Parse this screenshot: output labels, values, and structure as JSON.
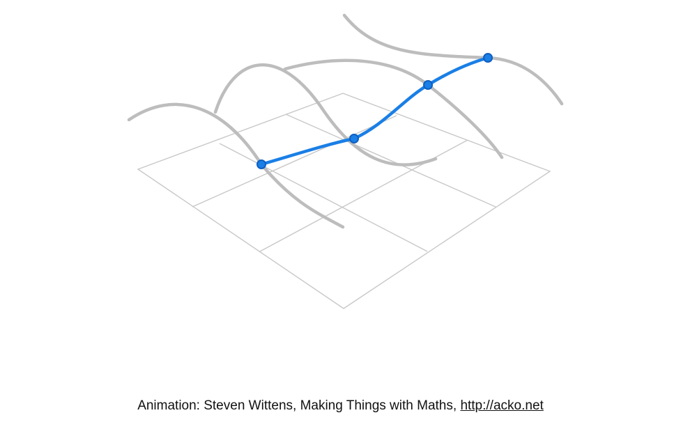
{
  "colors": {
    "grid": "#c8c8c8",
    "curve_gray": "#bdbdbd",
    "curve_blue": "#1a7fe6",
    "point_fill": "#1a7fe6",
    "point_stroke": "#0f5fc0",
    "text": "#111111"
  },
  "caption": {
    "prefix": "Animation: Steven Wittens, Making Things with Maths, ",
    "link_text": "http://acko.net"
  }
}
